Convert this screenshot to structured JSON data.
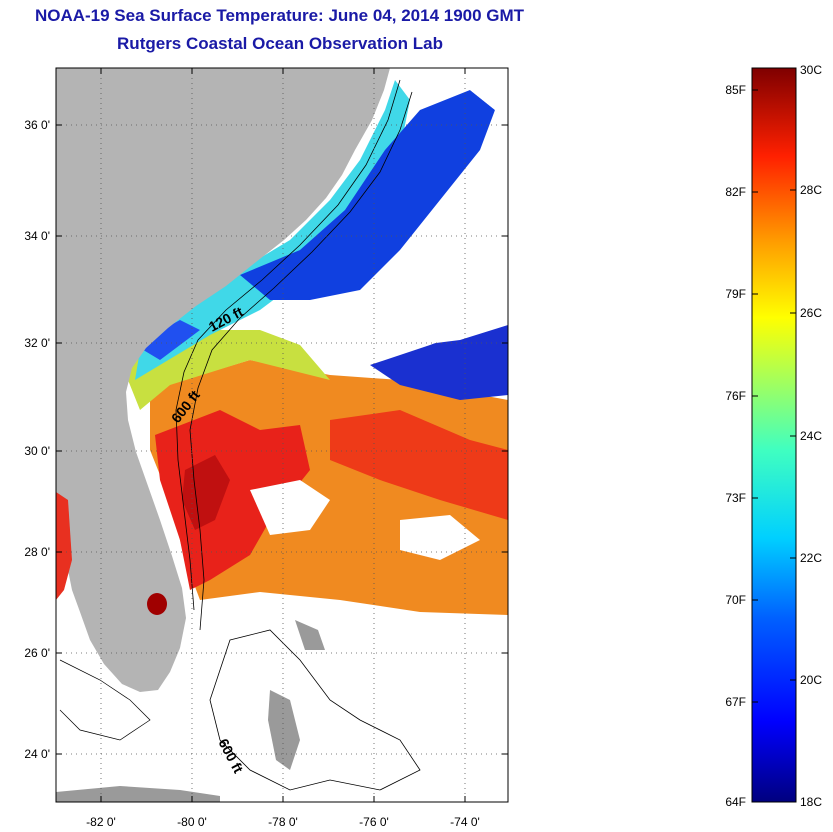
{
  "header": {
    "title": "NOAA-19 Sea Surface Temperature:  June 04, 2014 1900 GMT",
    "subtitle": "Rutgers Coastal Ocean Observation Lab"
  },
  "map": {
    "lat_ticks": [
      "36 0'",
      "34 0'",
      "32 0'",
      "30 0'",
      "28 0'",
      "26 0'",
      "24 0'"
    ],
    "lon_ticks": [
      "-82 0'",
      "-80 0'",
      "-78 0'",
      "-76 0'",
      "-74 0'"
    ],
    "contour_labels": [
      "120 ft",
      "600 ft",
      "600 ft"
    ],
    "land_color": "#b4b4b4",
    "cloud_color": "#ffffff"
  },
  "colorbar": {
    "fahrenheit_ticks": [
      "85F",
      "82F",
      "79F",
      "76F",
      "73F",
      "70F",
      "67F",
      "64F"
    ],
    "celsius_ticks": [
      "30C",
      "28C",
      "26C",
      "24C",
      "22C",
      "20C",
      "18C"
    ],
    "scale": "jet"
  }
}
